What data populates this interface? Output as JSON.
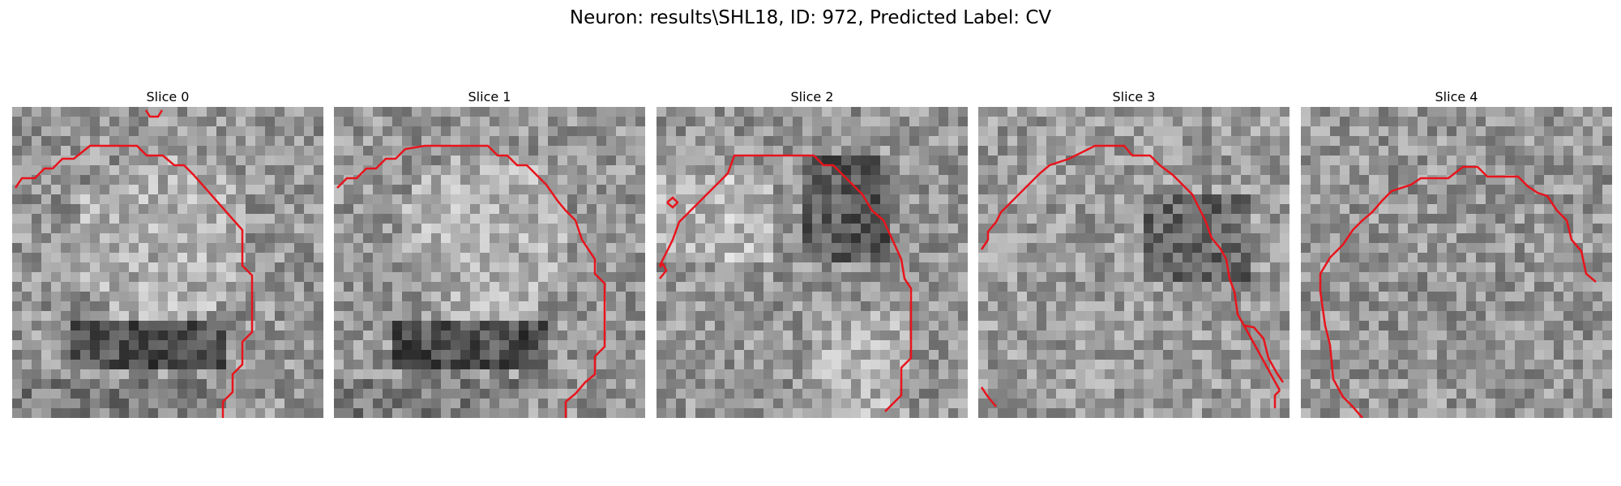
{
  "figure": {
    "title": "Neuron: results\\SHL18, ID: 972, Predicted Label: CV"
  },
  "slices": [
    {
      "label": "Slice 0"
    },
    {
      "label": "Slice 1"
    },
    {
      "label": "Slice 2"
    },
    {
      "label": "Slice 3"
    },
    {
      "label": "Slice 4"
    }
  ],
  "colors": {
    "contour": "#e8141c",
    "background": "#ffffff"
  },
  "colormap": "grayscale"
}
